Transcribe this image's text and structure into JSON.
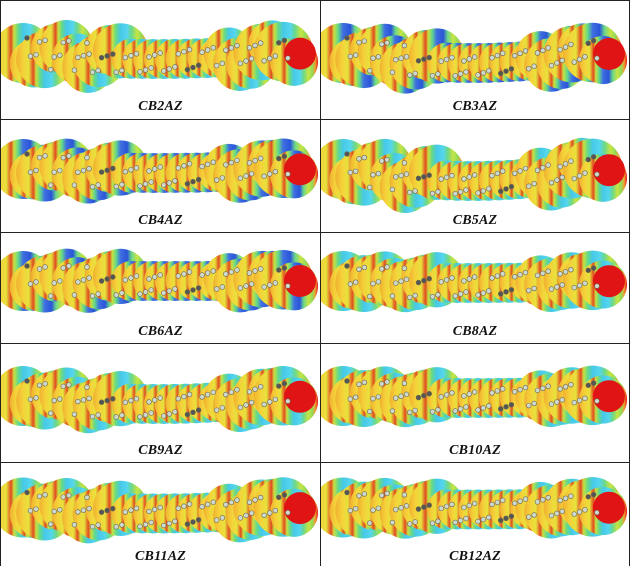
{
  "figure": {
    "panels": [
      {
        "label": "CB2AZ"
      },
      {
        "label": "CB3AZ"
      },
      {
        "label": "CB4AZ"
      },
      {
        "label": "CB5AZ"
      },
      {
        "label": "CB6AZ"
      },
      {
        "label": "CB8AZ"
      },
      {
        "label": "CB9AZ"
      },
      {
        "label": "CB10AZ"
      },
      {
        "label": "CB11AZ"
      },
      {
        "label": "CB12AZ"
      }
    ]
  }
}
